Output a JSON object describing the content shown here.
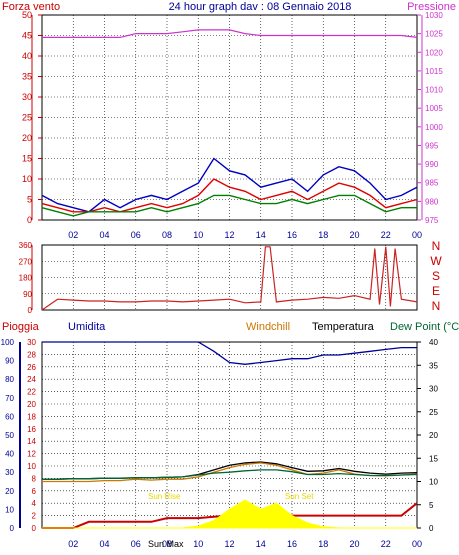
{
  "colors": {
    "wind": "#e00000",
    "gust": "#0000c0",
    "avg": "#008000",
    "pressure": "#cc33cc",
    "direction": "#cc2222",
    "rain": "#cc0000",
    "humidity": "#000099",
    "windchill": "#cc7700",
    "temperature": "#000000",
    "dewpoint": "#006633",
    "sun": "#ffff00",
    "axis_red": "#cc0000",
    "axis_blue": "#000099",
    "grid": "#000000"
  },
  "x_ticks": [
    "02",
    "04",
    "06",
    "08",
    "10",
    "12",
    "14",
    "16",
    "18",
    "20",
    "22",
    "00"
  ],
  "chart_data": [
    {
      "type": "line",
      "title": "24 hour graph dav : 08 Gennaio 2018",
      "left_axis_label": "Forza vento",
      "right_axis_label": "Pressione",
      "ylim": [
        0,
        50
      ],
      "yticks": [
        0,
        5,
        10,
        15,
        20,
        25,
        30,
        35,
        40,
        45,
        50
      ],
      "y2lim": [
        975,
        1030
      ],
      "y2ticks": [
        975,
        980,
        985,
        990,
        995,
        1000,
        1005,
        1010,
        1015,
        1020,
        1025,
        1030
      ],
      "x_hours": [
        0,
        1,
        2,
        3,
        4,
        5,
        6,
        7,
        8,
        9,
        10,
        11,
        12,
        13,
        14,
        15,
        16,
        17,
        18,
        19,
        20,
        21,
        22,
        23,
        24
      ],
      "series": [
        {
          "key": "gust",
          "values": [
            6,
            4,
            3,
            2,
            5,
            3,
            5,
            6,
            5,
            7,
            9,
            15,
            12,
            11,
            8,
            9,
            10,
            7,
            11,
            13,
            12,
            9,
            5,
            6,
            8
          ]
        },
        {
          "key": "wind",
          "values": [
            4,
            3,
            2,
            2,
            3,
            2,
            3,
            4,
            3,
            4,
            6,
            10,
            8,
            7,
            5,
            6,
            7,
            5,
            7,
            9,
            8,
            6,
            3,
            4,
            5
          ]
        },
        {
          "key": "avg",
          "values": [
            3,
            2,
            1,
            2,
            2,
            2,
            2,
            3,
            2,
            3,
            4,
            6,
            6,
            5,
            4,
            4,
            5,
            4,
            5,
            6,
            6,
            4,
            2,
            3,
            3
          ]
        },
        {
          "key": "pressure",
          "values": [
            1024,
            1024,
            1024,
            1024,
            1024,
            1024,
            1025,
            1025,
            1025,
            1025.5,
            1026,
            1026,
            1026,
            1025,
            1024.5,
            1024.5,
            1024.5,
            1024.5,
            1024.5,
            1024.5,
            1024.5,
            1024.5,
            1024.5,
            1024.5,
            1024
          ]
        }
      ]
    },
    {
      "type": "line",
      "left_ticks": [
        0,
        90,
        180,
        270,
        360
      ],
      "right_labels": [
        "N",
        "W",
        "S",
        "E",
        "N"
      ],
      "ylim": [
        0,
        360
      ],
      "x_hours": [
        0,
        1,
        2,
        3,
        4,
        5,
        6,
        7,
        8,
        9,
        10,
        11,
        12,
        13,
        14,
        14.3,
        14.6,
        15,
        16,
        17,
        18,
        19,
        20,
        21,
        21.3,
        21.6,
        22,
        22.3,
        22.6,
        23,
        24
      ],
      "values": [
        0,
        60,
        55,
        50,
        50,
        45,
        45,
        50,
        50,
        45,
        50,
        55,
        60,
        40,
        45,
        350,
        350,
        45,
        55,
        60,
        70,
        65,
        80,
        60,
        340,
        30,
        350,
        20,
        340,
        60,
        45
      ]
    },
    {
      "type": "line",
      "labels": {
        "rain": "Pioggia",
        "humidity": "Umidita",
        "windchill": "Windchill",
        "temperature": "Temperatura",
        "dewpoint": "Dew Point (°C"
      },
      "left_ticks": [
        0,
        2,
        4,
        6,
        8,
        10,
        12,
        14,
        16,
        18,
        20,
        22,
        24,
        26,
        28,
        30
      ],
      "left_lim": [
        0,
        30
      ],
      "humidity_ticks": [
        0,
        10,
        20,
        30,
        40,
        50,
        60,
        70,
        80,
        90,
        100
      ],
      "humidity_lim": [
        0,
        100
      ],
      "right_ticks": [
        0,
        5,
        10,
        15,
        20,
        25,
        30,
        35,
        40
      ],
      "right_lim": [
        0,
        40
      ],
      "annotations": {
        "sun_rise": "Sun Rise",
        "sun_set": "Sun Set",
        "sun_max": "Sun Max"
      },
      "x_hours": [
        0,
        1,
        2,
        3,
        4,
        5,
        6,
        7,
        8,
        9,
        10,
        11,
        12,
        13,
        14,
        15,
        16,
        17,
        18,
        19,
        20,
        21,
        22,
        23,
        24
      ],
      "series": [
        {
          "key": "humidity",
          "values": [
            100,
            100,
            100,
            100,
            100,
            100,
            100,
            100,
            100,
            100,
            100,
            95,
            89,
            88,
            89,
            90,
            91,
            91,
            93,
            93,
            94,
            95,
            96,
            97,
            97
          ]
        },
        {
          "key": "temperature",
          "values": [
            10.5,
            10.5,
            10.6,
            10.6,
            10.7,
            10.7,
            10.8,
            10.8,
            10.9,
            11,
            11.5,
            12.5,
            13.5,
            14,
            14.2,
            13.8,
            13,
            12.2,
            12.3,
            12.8,
            12.2,
            11.8,
            11.6,
            11.8,
            11.9
          ]
        },
        {
          "key": "windchill",
          "values": [
            10,
            10,
            10,
            10,
            10.2,
            10.2,
            10.5,
            10.3,
            10.5,
            10.5,
            11,
            12,
            13,
            13.7,
            14,
            13.5,
            12.5,
            11.5,
            11.8,
            12.5,
            11.6,
            11.3,
            11.2,
            11.4,
            11.6
          ]
        },
        {
          "key": "dewpoint",
          "values": [
            10.5,
            10.5,
            10.6,
            10.6,
            10.7,
            10.7,
            10.8,
            10.8,
            10.9,
            11,
            11.4,
            11.8,
            12,
            12.3,
            12.5,
            12.5,
            12.1,
            11.5,
            11.5,
            11.7,
            11.5,
            11.3,
            11.3,
            11.4,
            11.5
          ]
        },
        {
          "key": "rain",
          "values": [
            0,
            0,
            0,
            1,
            1,
            1,
            1,
            1,
            1.6,
            1.6,
            1.6,
            1.8,
            2,
            2,
            2,
            2,
            2,
            2,
            2,
            2,
            2,
            2,
            2,
            2,
            4
          ]
        },
        {
          "key": "solar",
          "values": [
            0,
            0,
            0,
            0,
            0,
            0,
            0,
            0,
            0,
            0,
            0.3,
            1.2,
            3,
            4.5,
            3,
            4,
            2,
            0.8,
            0.2,
            0,
            0,
            0,
            0,
            0,
            0
          ]
        }
      ]
    }
  ]
}
